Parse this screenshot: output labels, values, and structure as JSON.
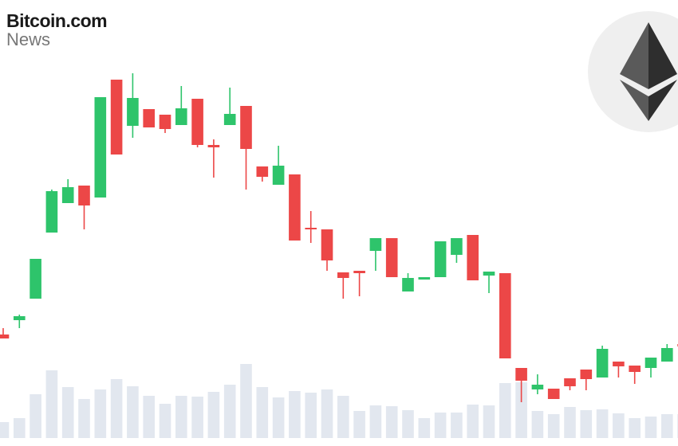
{
  "brand": {
    "name": "Bitcoin.com",
    "section": "News"
  },
  "chart_data": {
    "type": "candlestick",
    "categories": [
      null,
      null,
      null,
      null,
      null,
      null,
      null,
      null,
      null,
      null,
      null,
      null,
      null,
      null,
      null,
      null,
      null,
      null,
      null,
      null,
      null,
      null,
      null,
      null,
      null,
      null,
      null,
      null,
      null,
      null,
      null,
      null,
      null,
      null,
      null,
      null,
      null,
      null,
      null,
      null,
      null,
      null,
      null
    ],
    "open": [
      130,
      148,
      175,
      258,
      295,
      317,
      302,
      450,
      392,
      413,
      406,
      393,
      426,
      368,
      393,
      417,
      341,
      318,
      331,
      264,
      262,
      208,
      210,
      235,
      251,
      184,
      199,
      202,
      230,
      255,
      204,
      207,
      88,
      61,
      62,
      75,
      86,
      76,
      96,
      91,
      88,
      96,
      118
    ],
    "high": [
      138,
      155,
      225,
      312,
      325,
      317,
      428,
      450,
      458,
      413,
      406,
      442,
      426,
      375,
      440,
      417,
      341,
      367,
      331,
      285,
      262,
      208,
      210,
      251,
      251,
      207,
      202,
      247,
      251,
      255,
      209,
      207,
      88,
      80,
      62,
      75,
      86,
      116,
      96,
      91,
      101,
      118,
      118
    ],
    "low": [
      125,
      138,
      175,
      258,
      295,
      262,
      302,
      356,
      377,
      390,
      383,
      393,
      365,
      327,
      393,
      312,
      322,
      318,
      248,
      245,
      210,
      175,
      178,
      210,
      202,
      184,
      199,
      202,
      220,
      198,
      182,
      100,
      45,
      55,
      49,
      60,
      60,
      76,
      76,
      68,
      76,
      96,
      115
    ],
    "close": [
      125,
      153,
      225,
      310,
      315,
      292,
      428,
      356,
      427,
      390,
      388,
      414,
      368,
      365,
      407,
      363,
      328,
      342,
      248,
      262,
      223,
      201,
      207,
      251,
      202,
      201,
      202,
      247,
      251,
      198,
      209,
      100,
      72,
      67,
      49,
      65,
      74,
      112,
      90,
      83,
      101,
      113,
      115
    ],
    "volume": [
      20,
      25,
      55,
      85,
      64,
      49,
      61,
      74,
      65,
      53,
      43,
      53,
      52,
      58,
      67,
      93,
      64,
      51,
      59,
      57,
      61,
      53,
      34,
      41,
      40,
      35,
      25,
      32,
      32,
      42,
      41,
      69,
      70,
      34,
      30,
      39,
      35,
      36,
      31,
      25,
      27,
      30,
      30
    ],
    "ylim": [
      0,
      550
    ],
    "y2lim": [
      0,
      550
    ],
    "up_color": "#2ec46b",
    "down_color": "#ec4747",
    "volume_color": "#e2e7ef"
  }
}
